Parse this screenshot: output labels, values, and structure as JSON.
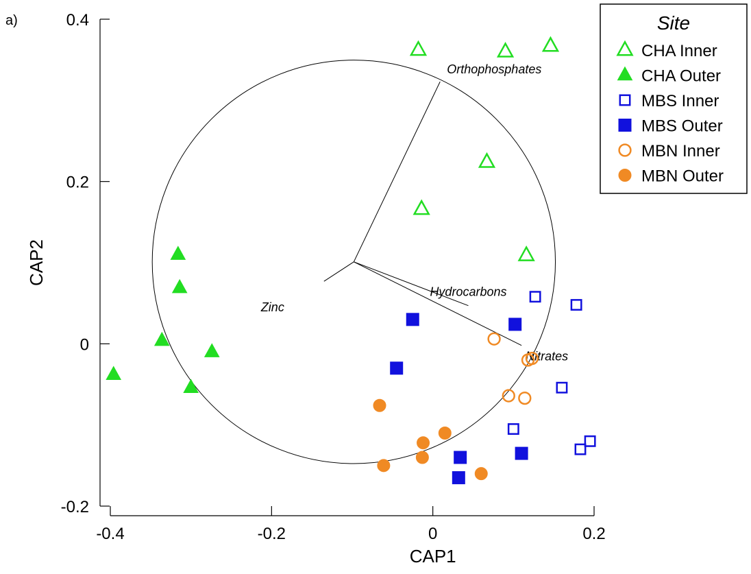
{
  "panel_label": "a)",
  "chart_data": {
    "type": "scatter",
    "xlabel": "CAP1",
    "ylabel": "CAP2",
    "xlim": [
      -0.4,
      0.2
    ],
    "ylim": [
      -0.2,
      0.4
    ],
    "x_ticks": [
      -0.4,
      -0.2,
      0,
      0.2
    ],
    "x_tick_labels": [
      "-0.4",
      "-0.2",
      "0",
      "0.2"
    ],
    "y_ticks": [
      -0.2,
      0,
      0.2,
      0.4
    ],
    "y_tick_labels": [
      "-0.2",
      "0",
      "0.2",
      "0.4"
    ],
    "grid": false,
    "legend": {
      "title": "Site",
      "placement": "top-right"
    },
    "series": [
      {
        "name": "CHA Inner",
        "marker": "triangle",
        "filled": false,
        "color": "#22dd22",
        "points": [
          [
            -0.018,
            0.362
          ],
          [
            0.09,
            0.36
          ],
          [
            0.146,
            0.367
          ],
          [
            0.067,
            0.224
          ],
          [
            -0.014,
            0.166
          ],
          [
            0.116,
            0.109
          ]
        ]
      },
      {
        "name": "CHA Outer",
        "marker": "triangle",
        "filled": true,
        "color": "#22dd22",
        "points": [
          [
            -0.316,
            0.11
          ],
          [
            -0.314,
            0.069
          ],
          [
            -0.336,
            0.004
          ],
          [
            -0.274,
            -0.01
          ],
          [
            -0.3,
            -0.054
          ],
          [
            -0.396,
            -0.038
          ]
        ]
      },
      {
        "name": "MBS Inner",
        "marker": "square",
        "filled": false,
        "color": "#1111dd",
        "points": [
          [
            0.127,
            0.058
          ],
          [
            0.178,
            0.048
          ],
          [
            0.16,
            -0.054
          ],
          [
            0.1,
            -0.105
          ],
          [
            0.183,
            -0.13
          ],
          [
            0.195,
            -0.12
          ]
        ]
      },
      {
        "name": "MBS Outer",
        "marker": "square",
        "filled": true,
        "color": "#1111dd",
        "points": [
          [
            -0.025,
            0.03
          ],
          [
            0.102,
            0.024
          ],
          [
            -0.045,
            -0.03
          ],
          [
            0.034,
            -0.14
          ],
          [
            0.032,
            -0.165
          ],
          [
            0.11,
            -0.135
          ]
        ]
      },
      {
        "name": "MBN Inner",
        "marker": "circle",
        "filled": false,
        "color": "#f08a24",
        "points": [
          [
            0.076,
            0.006
          ],
          [
            0.118,
            -0.02
          ],
          [
            0.123,
            -0.018
          ],
          [
            0.094,
            -0.064
          ],
          [
            0.114,
            -0.067
          ]
        ]
      },
      {
        "name": "MBN Outer",
        "marker": "circle",
        "filled": true,
        "color": "#f08a24",
        "points": [
          [
            -0.066,
            -0.076
          ],
          [
            -0.012,
            -0.122
          ],
          [
            0.015,
            -0.11
          ],
          [
            -0.013,
            -0.14
          ],
          [
            -0.061,
            -0.15
          ],
          [
            0.06,
            -0.16
          ]
        ]
      }
    ],
    "vector_origin": [
      -0.098,
      0.101
    ],
    "correlation_circle_radius": 0.25,
    "vectors": [
      {
        "name": "Orthophosphates",
        "end": [
          0.009,
          0.323
        ]
      },
      {
        "name": "Zinc",
        "end": [
          -0.135,
          0.077
        ]
      },
      {
        "name": "Hydrocarbons",
        "end": [
          0.044,
          0.047
        ]
      },
      {
        "name": "Nitrates",
        "end": [
          0.11,
          -0.002
        ]
      }
    ]
  }
}
